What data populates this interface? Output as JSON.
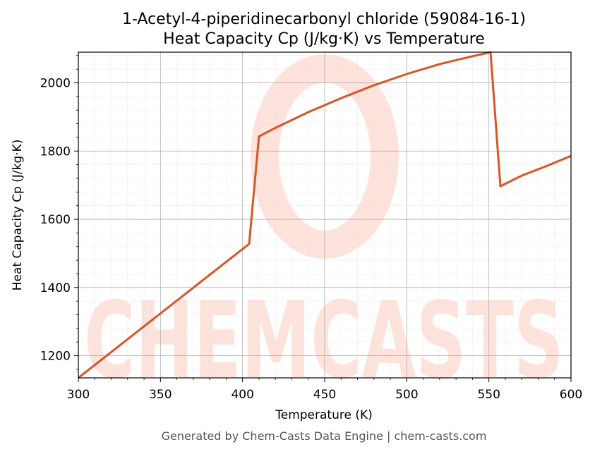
{
  "chart_data": {
    "type": "line",
    "title": "1-Acetyl-4-piperidinecarbonyl chloride (59084-16-1)",
    "subtitle": "Heat Capacity Cp (J/kg·K) vs Temperature",
    "xlabel": "Temperature (K)",
    "ylabel": "Heat Capacity Cp (J/kg·K)",
    "xlim": [
      300,
      600
    ],
    "ylim": [
      1135,
      2090
    ],
    "xticks": [
      300,
      350,
      400,
      450,
      500,
      550,
      600
    ],
    "yticks": [
      1200,
      1400,
      1600,
      1800,
      2000
    ],
    "grid": true,
    "line_color": "#d95525",
    "series": [
      {
        "x": [
          300,
          404,
          410,
          420,
          440,
          460,
          480,
          500,
          520,
          540,
          551,
          557,
          570,
          585,
          600
        ],
        "y": [
          1135,
          1528,
          1843,
          1868,
          1914,
          1955,
          1993,
          2026,
          2055,
          2078,
          2090,
          1697,
          1728,
          1756,
          1786
        ]
      }
    ]
  },
  "watermark": {
    "text": "CHEMCASTS",
    "color": "#fde3dc"
  },
  "footer": "Generated by Chem-Casts Data Engine | chem-casts.com"
}
